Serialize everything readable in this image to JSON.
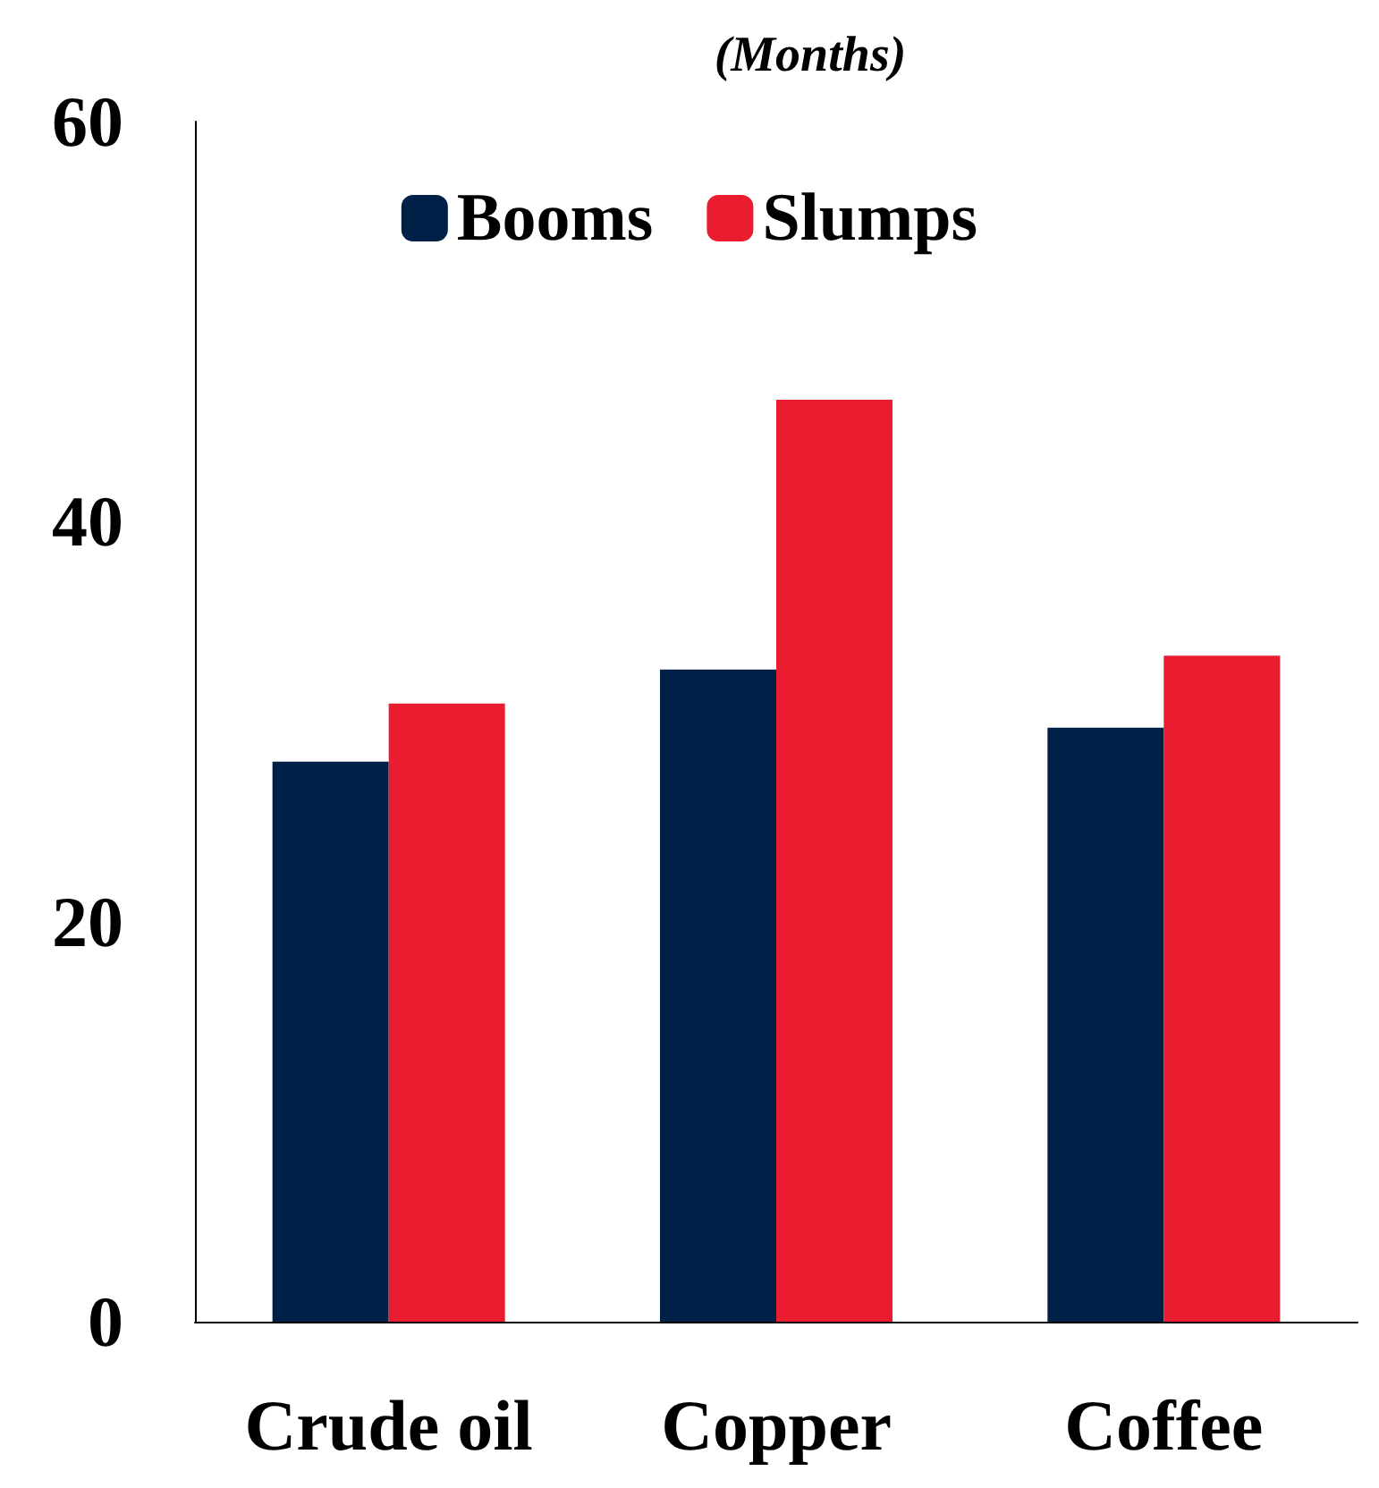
{
  "chart_data": {
    "type": "bar",
    "title": "(Months)",
    "categories": [
      "Crude oil",
      "Copper",
      "Coffee"
    ],
    "series": [
      {
        "name": "Booms",
        "color": "#002147",
        "values": [
          28,
          32.6,
          29.7
        ]
      },
      {
        "name": "Slumps",
        "color": "#e91d2f",
        "values": [
          30.9,
          46.1,
          33.3
        ]
      }
    ],
    "ylim": [
      0,
      60
    ],
    "yticks": [
      0,
      20,
      40,
      60
    ],
    "grid": false,
    "legend": "top"
  }
}
